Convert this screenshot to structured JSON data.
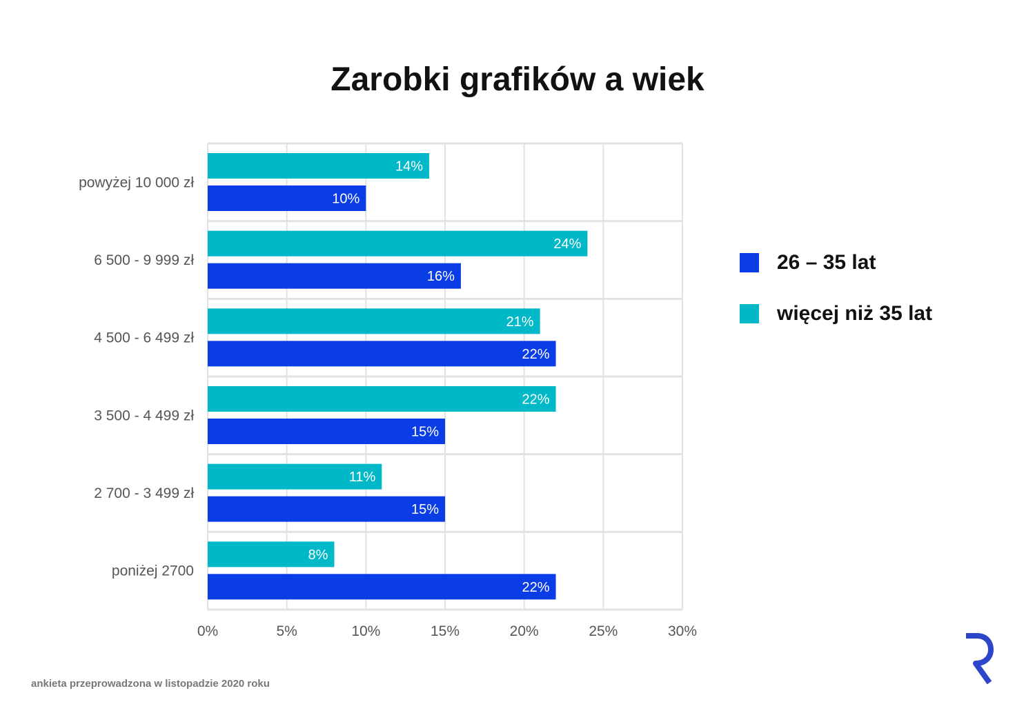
{
  "title": "Zarobki grafików a wiek",
  "footnote": "ankieta przeprowadzona w listopadzie 2020 roku",
  "logo": "R",
  "colors": {
    "series_26_35": "#0a3de6",
    "series_over_35": "#00b8c8",
    "grid": "#e2e2e2",
    "logo": "#2d45c8"
  },
  "chart_data": {
    "type": "bar",
    "orientation": "horizontal",
    "categories": [
      "powyżej 10 000 zł",
      "6 500 - 9 999 zł",
      "4 500 - 6 499 zł",
      "3 500 - 4 499 zł",
      "2 700 - 3 499 zł",
      "poniżej 2700"
    ],
    "series": [
      {
        "name": "więcej niż 35 lat",
        "values": [
          14,
          24,
          21,
          22,
          11,
          8
        ],
        "labels": [
          "14%",
          "24%",
          "21%",
          "22%",
          "11%",
          "8%"
        ]
      },
      {
        "name": "26 – 35 lat",
        "values": [
          10,
          16,
          22,
          15,
          15,
          22
        ],
        "labels": [
          "10%",
          "16%",
          "22%",
          "15%",
          "15%",
          "22%"
        ]
      }
    ],
    "x_ticks": [
      "0%",
      "5%",
      "10%",
      "15%",
      "20%",
      "25%",
      "30%"
    ],
    "xlim": [
      0,
      30
    ],
    "grid": true,
    "legend_position": "right",
    "legend": [
      {
        "name": "26 – 35 lat",
        "color": "#0a3de6"
      },
      {
        "name": "więcej niż 35 lat",
        "color": "#00b8c8"
      }
    ]
  }
}
